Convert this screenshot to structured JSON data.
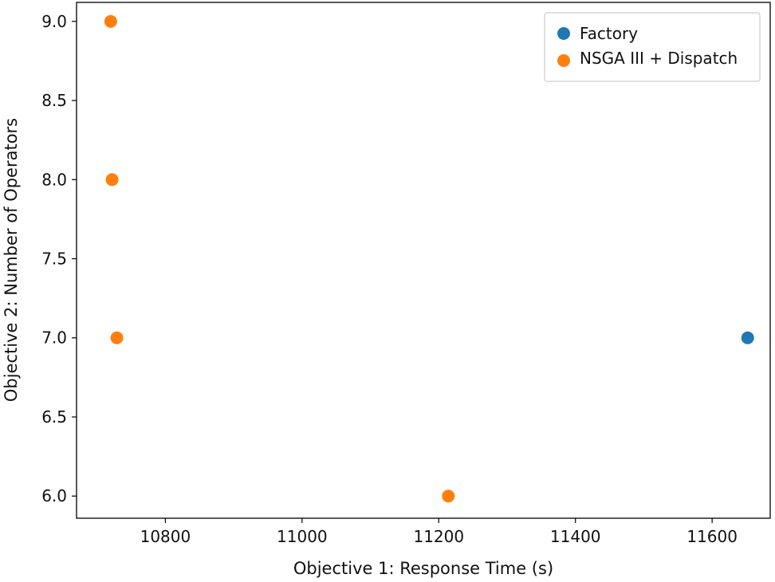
{
  "chart_data": {
    "type": "scatter",
    "title": "",
    "xlabel": "Objective 1: Response Time (s)",
    "ylabel": "Objective 2: Number of Operators",
    "xlim": [
      10670,
      11685
    ],
    "ylim": [
      5.86,
      9.12
    ],
    "xticks": [
      10800,
      11000,
      11200,
      11400,
      11600
    ],
    "yticks": [
      6.0,
      6.5,
      7.0,
      7.5,
      8.0,
      8.5,
      9.0
    ],
    "xtick_labels": [
      "10800",
      "11000",
      "11200",
      "11400",
      "11600"
    ],
    "ytick_labels": [
      "6.0",
      "6.5",
      "7.0",
      "7.5",
      "8.0",
      "8.5",
      "9.0"
    ],
    "grid": false,
    "legend_position": "top-right",
    "series": [
      {
        "name": "Factory",
        "color": "#1f77b4",
        "points": [
          {
            "x": 11652,
            "y": 7.0
          }
        ]
      },
      {
        "name": "NSGA III + Dispatch",
        "color": "#ff7f0e",
        "points": [
          {
            "x": 10720,
            "y": 9.0
          },
          {
            "x": 10722,
            "y": 8.0
          },
          {
            "x": 10729,
            "y": 7.0
          },
          {
            "x": 11214,
            "y": 6.0
          }
        ]
      }
    ]
  }
}
